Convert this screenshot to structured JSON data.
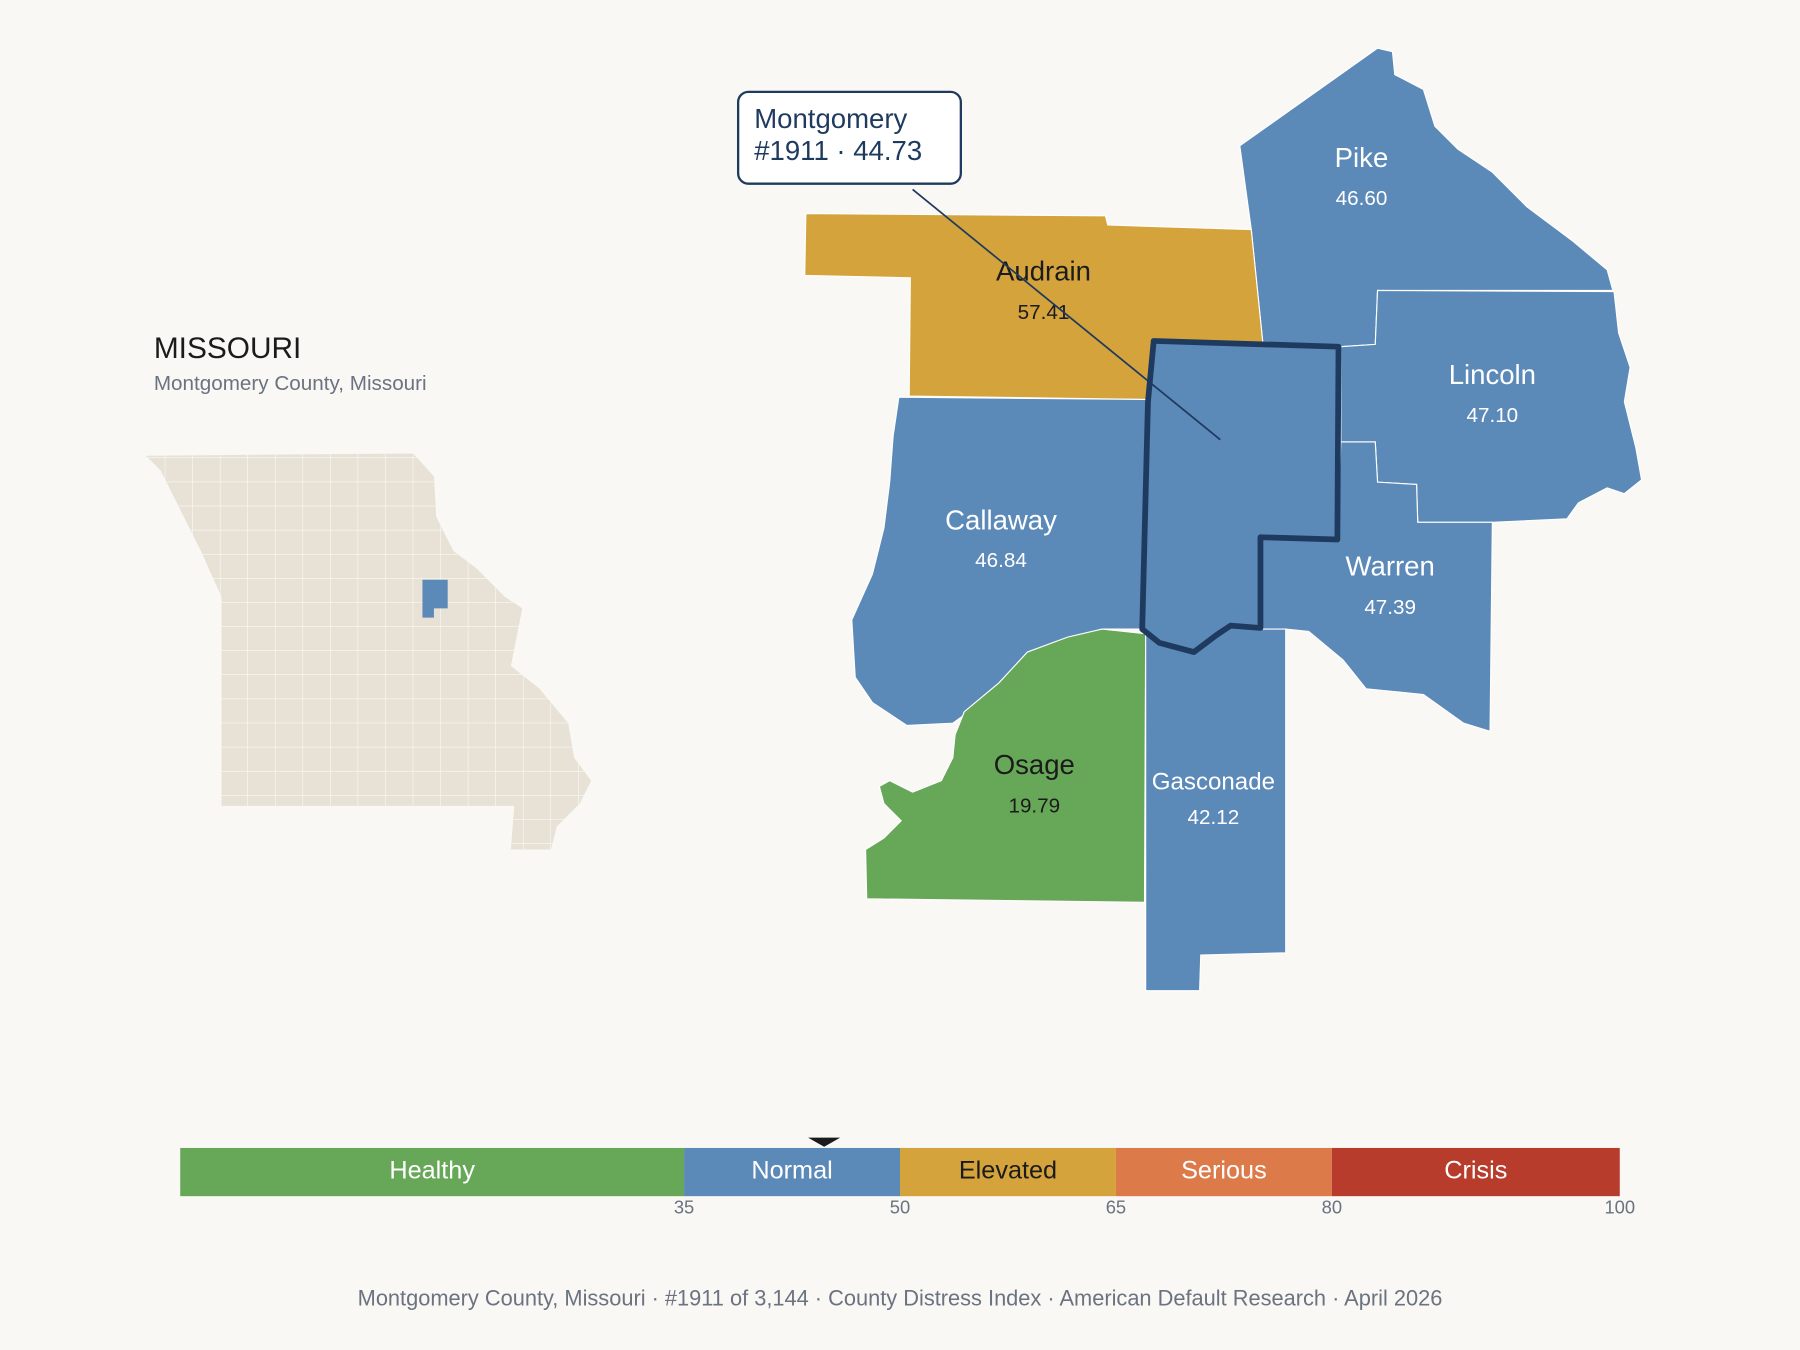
{
  "header": {
    "title": "MISSOURI",
    "subtitle": "Montgomery County, Missouri"
  },
  "callout": {
    "name": "Montgomery",
    "label": "#1911 · 44.73"
  },
  "focus": {
    "name": "Montgomery",
    "value": 44.73,
    "color": "#5b89b8"
  },
  "counties": [
    {
      "name": "Pike",
      "value": 46.6,
      "value_label": "46.60",
      "color": "#5b89b8"
    },
    {
      "name": "Audrain",
      "value": 57.41,
      "value_label": "57.41",
      "color": "#d4a33b"
    },
    {
      "name": "Lincoln",
      "value": 47.1,
      "value_label": "47.10",
      "color": "#5b89b8"
    },
    {
      "name": "Callaway",
      "value": 46.84,
      "value_label": "46.84",
      "color": "#5b89b8"
    },
    {
      "name": "Warren",
      "value": 47.39,
      "value_label": "47.39",
      "color": "#5b89b8"
    },
    {
      "name": "Osage",
      "value": 19.79,
      "value_label": "19.79",
      "color": "#67a758"
    },
    {
      "name": "Gasconade",
      "value": 42.12,
      "value_label": "42.12",
      "color": "#5b89b8"
    }
  ],
  "legend": {
    "lim": [
      0,
      100
    ],
    "ticks": [
      35,
      50,
      65,
      80,
      100
    ],
    "bands": [
      {
        "name": "Healthy",
        "color": "#67a758"
      },
      {
        "name": "Normal",
        "color": "#5b89b8"
      },
      {
        "name": "Elevated",
        "color": "#d4a33b"
      },
      {
        "name": "Serious",
        "color": "#dd7a49"
      },
      {
        "name": "Crisis",
        "color": "#b83c2b"
      }
    ]
  },
  "footer": "Montgomery County, Missouri  ·  #1911 of 3,144  ·  County Distress Index  ·  American Default Research  ·  April 2026"
}
